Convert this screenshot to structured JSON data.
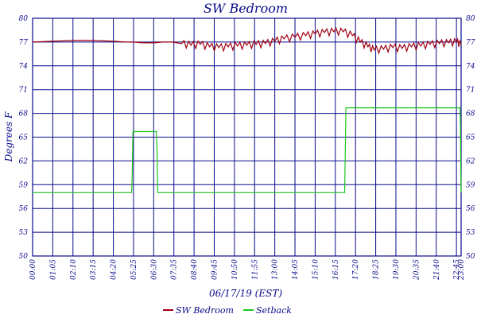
{
  "chart_data": {
    "type": "line",
    "title": "SW Bedroom",
    "xlabel": "06/17/19 (EST)",
    "ylabel": "Degrees F",
    "x_ticks": [
      "00:00",
      "01:05",
      "02:10",
      "03:15",
      "04:20",
      "05:25",
      "06:30",
      "07:35",
      "08:40",
      "09:45",
      "10:50",
      "11:55",
      "13:00",
      "14:05",
      "15:10",
      "16:15",
      "17:20",
      "18:25",
      "19:30",
      "20:35",
      "21:40",
      "22:45",
      "23:00"
    ],
    "y_ticks": [
      "50",
      "53",
      "56",
      "59",
      "62",
      "65",
      "68",
      "71",
      "74",
      "77",
      "80"
    ],
    "ylim": [
      50,
      80
    ],
    "xlim_minutes": [
      0,
      1380
    ],
    "grid": true,
    "legend_position": "bottom",
    "colors": {
      "axis": "#0a0a8c",
      "grid": "#0a0a8c",
      "sw_bedroom": "#a00010",
      "setback": "#1ec41e"
    },
    "series": [
      {
        "name": "SW Bedroom",
        "x_minutes": [
          0,
          65,
          130,
          195,
          260,
          300,
          325,
          355,
          390,
          420,
          450,
          480,
          510,
          540,
          570,
          600,
          630,
          660,
          690,
          720,
          750,
          780,
          810,
          845,
          880,
          910,
          940,
          970,
          1000,
          1030,
          1055,
          1080,
          1100,
          1130,
          1160,
          1190,
          1220,
          1250,
          1280,
          1310,
          1340,
          1365,
          1380
        ],
        "values": [
          77.0,
          77.1,
          77.2,
          77.2,
          77.1,
          77.0,
          77.0,
          76.9,
          76.9,
          77.0,
          77.0,
          76.8,
          76.6,
          76.7,
          76.4,
          76.3,
          76.4,
          76.5,
          76.6,
          76.7,
          76.8,
          77.1,
          77.4,
          77.6,
          77.8,
          78.0,
          78.2,
          78.3,
          78.3,
          77.8,
          77.0,
          76.4,
          76.0,
          76.1,
          76.3,
          76.2,
          76.4,
          76.5,
          76.7,
          76.8,
          76.9,
          77.0,
          76.7
        ]
      },
      {
        "name": "Setback",
        "x_minutes": [
          0,
          319,
          321,
          323,
          399,
          401,
          403,
          1005,
          1007,
          1009,
          1377,
          1378,
          1379,
          1380
        ],
        "values": [
          58.0,
          58.0,
          60.5,
          65.7,
          65.7,
          63.0,
          58.0,
          58.0,
          63.0,
          68.7,
          68.7,
          66.5,
          61.0,
          58.0
        ]
      }
    ]
  }
}
